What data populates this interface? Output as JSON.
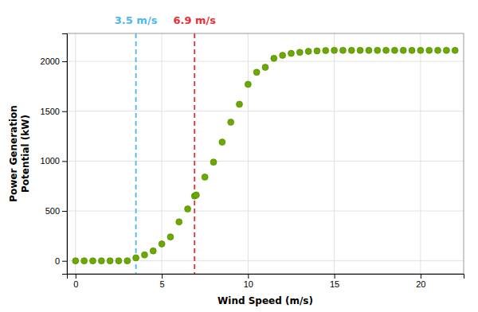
{
  "chart_data": {
    "type": "scatter",
    "xlabel": "Wind Speed (m/s)",
    "ylabel": "Power Generation\nPotential (kW)",
    "x": [
      0,
      0.5,
      1.0,
      1.5,
      2.0,
      2.5,
      3.0,
      3.5,
      4.0,
      4.5,
      5.0,
      5.5,
      6.0,
      6.5,
      6.9,
      7.0,
      7.5,
      8.0,
      8.5,
      9.0,
      9.5,
      10.0,
      10.5,
      11.0,
      11.5,
      12.0,
      12.5,
      13.0,
      13.5,
      14.0,
      14.5,
      15.0,
      15.5,
      16.0,
      16.5,
      17.0,
      17.5,
      18.0,
      18.5,
      19.0,
      19.5,
      20.0,
      20.5,
      21.0,
      21.5,
      22.0
    ],
    "values": [
      0,
      0,
      0,
      0,
      0,
      0,
      0,
      30,
      60,
      100,
      170,
      240,
      390,
      520,
      650,
      660,
      840,
      990,
      1190,
      1390,
      1570,
      1770,
      1890,
      1940,
      2030,
      2060,
      2080,
      2090,
      2100,
      2105,
      2108,
      2110,
      2110,
      2110,
      2110,
      2110,
      2110,
      2110,
      2110,
      2110,
      2110,
      2110,
      2110,
      2110,
      2110,
      2110
    ],
    "color": "#6aaa00",
    "xlim": [
      -0.5,
      22.5
    ],
    "ylim": [
      -130,
      2280
    ],
    "xticks": [
      0,
      5,
      10,
      15,
      20
    ],
    "yticks": [
      0,
      500,
      1000,
      1500,
      2000
    ],
    "grid": true,
    "annotations": [
      {
        "x": 3.5,
        "label": "3.5 m/s",
        "color": "#4db8e8",
        "line_style": "dashed"
      },
      {
        "x": 6.9,
        "label": "6.9 m/s",
        "color": "#e83030",
        "line_style": "dashed"
      }
    ]
  }
}
